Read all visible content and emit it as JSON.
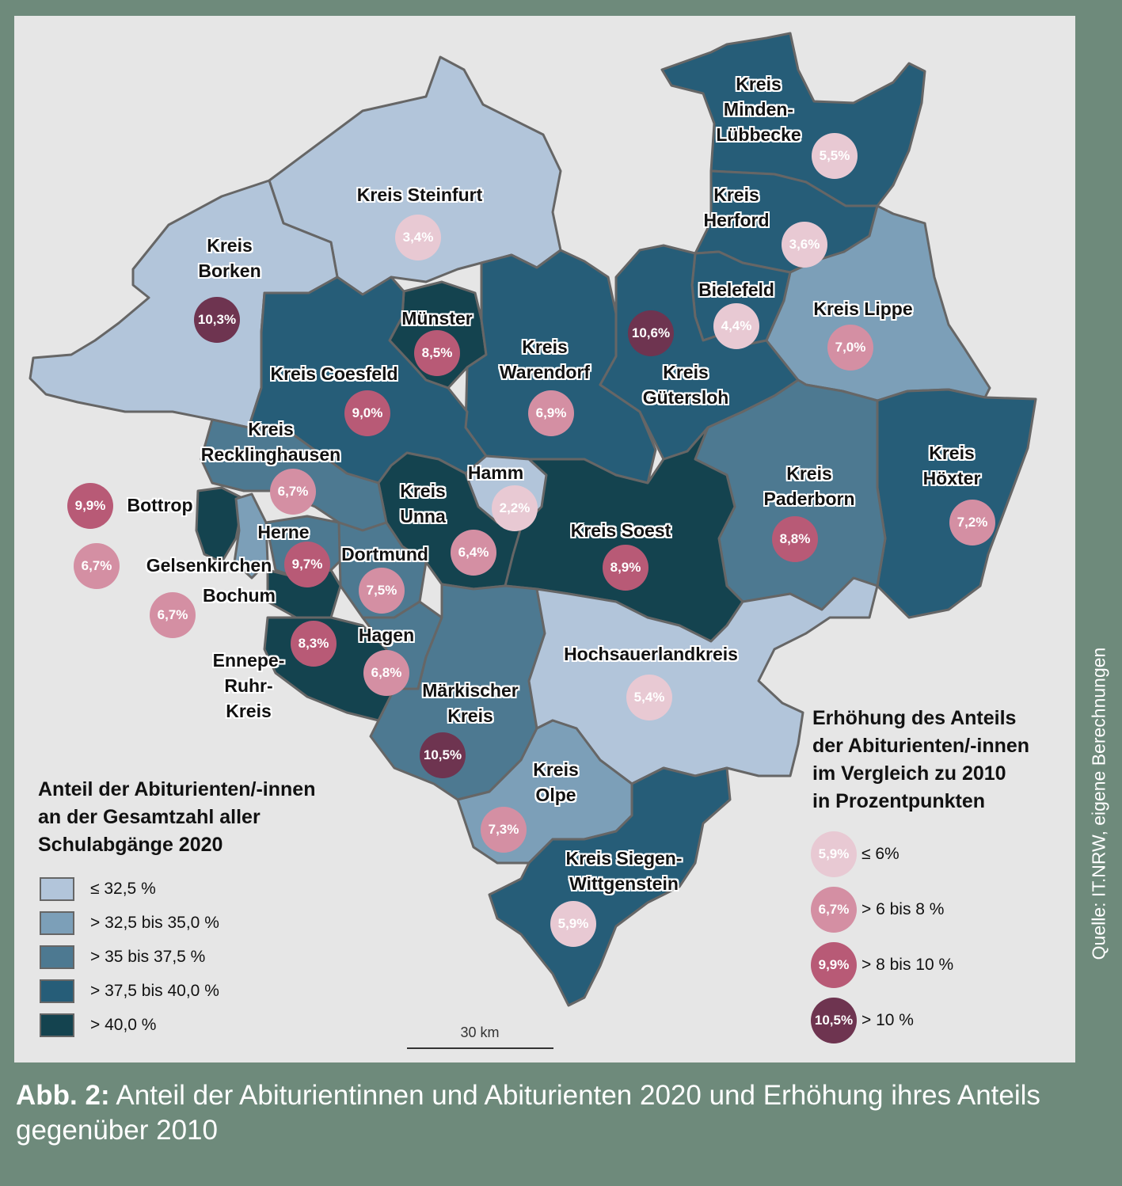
{
  "colors": {
    "background": "#6e8a7b",
    "map_background": "#e6e6e6",
    "share_classes": [
      "#b2c5da",
      "#7c9fb8",
      "#4d7991",
      "#265d78",
      "#14434f"
    ],
    "increase_classes": [
      "#e8c9d3",
      "#d48fa3",
      "#b85a76",
      "#6e3450"
    ]
  },
  "map": {
    "regions": [
      {
        "name": "Kreis Steinfurt",
        "label": "Kreis Steinfurt",
        "share_class": 0,
        "increase": "3,4%",
        "increase_class": 0
      },
      {
        "name": "Kreis Borken",
        "label": "Kreis\nBorken",
        "share_class": 0,
        "increase": "10,3%",
        "increase_class": 3
      },
      {
        "name": "Münster",
        "label": "Münster",
        "share_class": 4,
        "increase": "8,5%",
        "increase_class": 2
      },
      {
        "name": "Kreis Warendorf",
        "label": "Kreis\nWarendorf",
        "share_class": 3,
        "increase": "6,9%",
        "increase_class": 1
      },
      {
        "name": "Kreis Coesfeld",
        "label": "Kreis Coesfeld",
        "share_class": 3,
        "increase": "9,0%",
        "increase_class": 2
      },
      {
        "name": "Kreis Minden-Lübbecke",
        "label": "Kreis\nMinden-\nLübbecke",
        "share_class": 3,
        "increase": "5,5%",
        "increase_class": 0
      },
      {
        "name": "Kreis Herford",
        "label": "Kreis\nHerford",
        "share_class": 3,
        "increase": "3,6%",
        "increase_class": 0
      },
      {
        "name": "Bielefeld",
        "label": "Bielefeld",
        "share_class": 3,
        "increase": "4,4%",
        "increase_class": 0
      },
      {
        "name": "Kreis Gütersloh",
        "label": "Kreis\nGütersloh",
        "share_class": 3,
        "increase": "10,6%",
        "increase_class": 3
      },
      {
        "name": "Kreis Lippe",
        "label": "Kreis Lippe",
        "share_class": 1,
        "increase": "7,0%",
        "increase_class": 1
      },
      {
        "name": "Kreis Höxter",
        "label": "Kreis\nHöxter",
        "share_class": 3,
        "increase": "7,2%",
        "increase_class": 1
      },
      {
        "name": "Kreis Paderborn",
        "label": "Kreis\nPaderborn",
        "share_class": 2,
        "increase": "8,8%",
        "increase_class": 2
      },
      {
        "name": "Kreis Soest",
        "label": "Kreis Soest",
        "share_class": 4,
        "increase": "8,9%",
        "increase_class": 2
      },
      {
        "name": "Hamm",
        "label": "Hamm",
        "share_class": 0,
        "increase": "2,2%",
        "increase_class": 0
      },
      {
        "name": "Kreis Unna",
        "label": "Kreis\nUnna",
        "share_class": 4,
        "increase": "6,4%",
        "increase_class": 1
      },
      {
        "name": "Kreis Recklinghausen",
        "label": "Kreis\nRecklinghausen",
        "share_class": 2,
        "increase": "6,7%",
        "increase_class": 1
      },
      {
        "name": "Bottrop",
        "label": "Bottrop",
        "share_class": 4,
        "increase": "9,9%",
        "increase_class": 2
      },
      {
        "name": "Gelsenkirchen",
        "label": "Gelsenkirchen",
        "share_class": 1,
        "increase": "6,7%",
        "increase_class": 1
      },
      {
        "name": "Herne",
        "label": "Herne",
        "share_class": 2,
        "increase": "9,7%",
        "increase_class": 2
      },
      {
        "name": "Bochum",
        "label": "Bochum",
        "share_class": 4,
        "increase": "6,7%",
        "increase_class": 1
      },
      {
        "name": "Dortmund",
        "label": "Dortmund",
        "share_class": 2,
        "increase": "7,5%",
        "increase_class": 1
      },
      {
        "name": "Ennepe-Ruhr-Kreis",
        "label": "Ennepe-\nRuhr-\nKreis",
        "share_class": 4,
        "increase": "8,3%",
        "increase_class": 2
      },
      {
        "name": "Hagen",
        "label": "Hagen",
        "share_class": 2,
        "increase": "6,8%",
        "increase_class": 1
      },
      {
        "name": "Märkischer Kreis",
        "label": "Märkischer\nKreis",
        "share_class": 2,
        "increase": "10,5%",
        "increase_class": 3
      },
      {
        "name": "Hochsauerlandkreis",
        "label": "Hochsauerlandkreis",
        "share_class": 0,
        "increase": "5,4%",
        "increase_class": 0
      },
      {
        "name": "Kreis Olpe",
        "label": "Kreis\nOlpe",
        "share_class": 1,
        "increase": "7,3%",
        "increase_class": 1
      },
      {
        "name": "Kreis Siegen-Wittgenstein",
        "label": "Kreis Siegen-\nWittgenstein",
        "share_class": 3,
        "increase": "5,9%",
        "increase_class": 0
      }
    ]
  },
  "legend_share": {
    "title": "Anteil der Abiturienten/-innen\nan der Gesamtzahl aller\nSchulabgänge 2020",
    "items": [
      "≤ 32,5 %",
      "> 32,5 bis 35,0 %",
      "> 35 bis 37,5 %",
      "> 37,5 bis 40,0 %",
      "> 40,0 %"
    ]
  },
  "legend_increase": {
    "title": "Erhöhung des Anteils\nder Abiturienten/-innen\nim Vergleich zu 2010\nin Prozentpunkten",
    "items": [
      {
        "sample": "5,9%",
        "label": "≤ 6%"
      },
      {
        "sample": "6,7%",
        "label": "> 6 bis 8 %"
      },
      {
        "sample": "9,9%",
        "label": "> 8 bis 10 %"
      },
      {
        "sample": "10,5%",
        "label": "> 10 %"
      }
    ]
  },
  "scale_bar": {
    "label": "30 km"
  },
  "source": "Quelle: IT.NRW, eigene Berechnungen",
  "caption": {
    "prefix": "Abb. 2:",
    "text": "Anteil der Abiturientinnen und Abiturienten 2020 und Erhöhung ihres Anteils gegenüber 2010"
  }
}
